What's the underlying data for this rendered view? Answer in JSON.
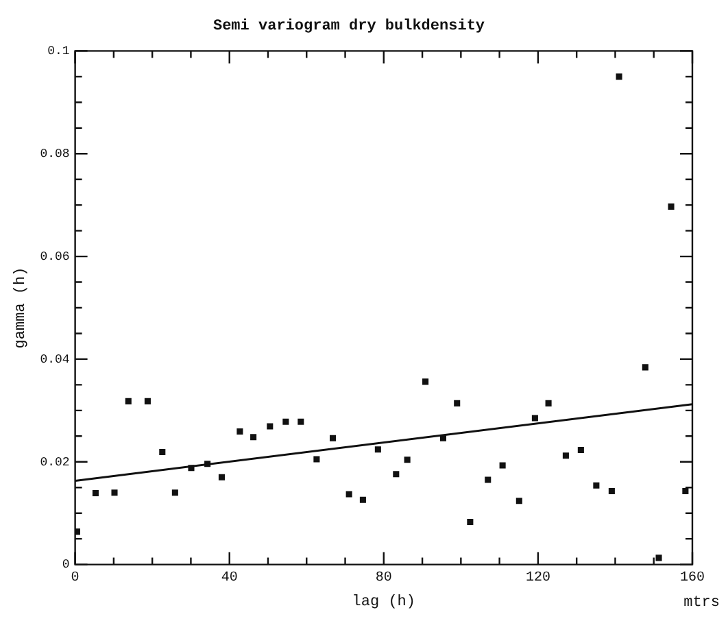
{
  "chart_data": {
    "type": "scatter",
    "title": "Semi variogram dry bulkdensity",
    "xlabel": "lag (h)",
    "ylabel": "gamma (h)",
    "annotations": [
      "mtrs"
    ],
    "xlim": [
      0,
      160
    ],
    "ylim": [
      0,
      0.1
    ],
    "xticks": [
      0,
      {
        "value": 10,
        "label": null
      },
      {
        "value": 20,
        "label": null
      },
      {
        "value": 30,
        "label": null
      },
      40,
      {
        "value": 50,
        "label": null
      },
      {
        "value": 60,
        "label": null
      },
      {
        "value": 70,
        "label": null
      },
      80,
      {
        "value": 90,
        "label": null
      },
      {
        "value": 100,
        "label": null
      },
      {
        "value": 110,
        "label": null
      },
      120,
      {
        "value": 130,
        "label": null
      },
      {
        "value": 140,
        "label": null
      },
      {
        "value": 150,
        "label": null
      },
      160
    ],
    "yticks": [
      0,
      {
        "value": 0.005,
        "label": null
      },
      {
        "value": 0.01,
        "label": null
      },
      {
        "value": 0.015,
        "label": null
      },
      0.02,
      {
        "value": 0.025,
        "label": null
      },
      {
        "value": 0.03,
        "label": null
      },
      {
        "value": 0.035,
        "label": null
      },
      0.04,
      {
        "value": 0.045,
        "label": null
      },
      {
        "value": 0.05,
        "label": null
      },
      {
        "value": 0.055,
        "label": null
      },
      0.06,
      {
        "value": 0.065,
        "label": null
      },
      {
        "value": 0.07,
        "label": null
      },
      {
        "value": 0.075,
        "label": null
      },
      0.08,
      {
        "value": 0.085,
        "label": null
      },
      {
        "value": 0.09,
        "label": null
      },
      {
        "value": 0.095,
        "label": null
      },
      0.1
    ],
    "grid": false,
    "legend": false,
    "marker": "square",
    "series": [
      {
        "color": "#111111",
        "x": [
          0.5,
          5.3,
          10.2,
          13.8,
          18.8,
          22.6,
          25.9,
          30.1,
          34.3,
          38,
          42.7,
          46.2,
          50.5,
          54.6,
          58.5,
          62.6,
          66.8,
          71,
          74.6,
          78.5,
          83.2,
          86.1,
          90.8,
          95.4,
          99,
          102.4,
          107,
          110.8,
          115.1,
          119.2,
          122.7,
          127.2,
          131.1,
          135.1,
          139.1,
          141,
          147.8,
          151.3,
          154.5,
          158.2
        ],
        "values": [
          0.0064,
          0.0139,
          0.014,
          0.0318,
          0.0318,
          0.0219,
          0.014,
          0.0188,
          0.0196,
          0.017,
          0.0259,
          0.0248,
          0.0269,
          0.0278,
          0.0278,
          0.0205,
          0.0246,
          0.0137,
          0.0126,
          0.0224,
          0.0176,
          0.0204,
          0.0356,
          0.0246,
          0.0314,
          0.0083,
          0.0165,
          0.0193,
          0.0124,
          0.0285,
          0.0314,
          0.0212,
          0.0223,
          0.0154,
          0.0143,
          0.095,
          0.0384,
          0.0013,
          0.0697,
          0.0143
        ]
      },
      {
        "type": "line",
        "color": "#111111",
        "marker": "none",
        "line_style": "solid",
        "x": [
          0,
          160
        ],
        "values": [
          0.0163,
          0.0312
        ]
      }
    ]
  }
}
